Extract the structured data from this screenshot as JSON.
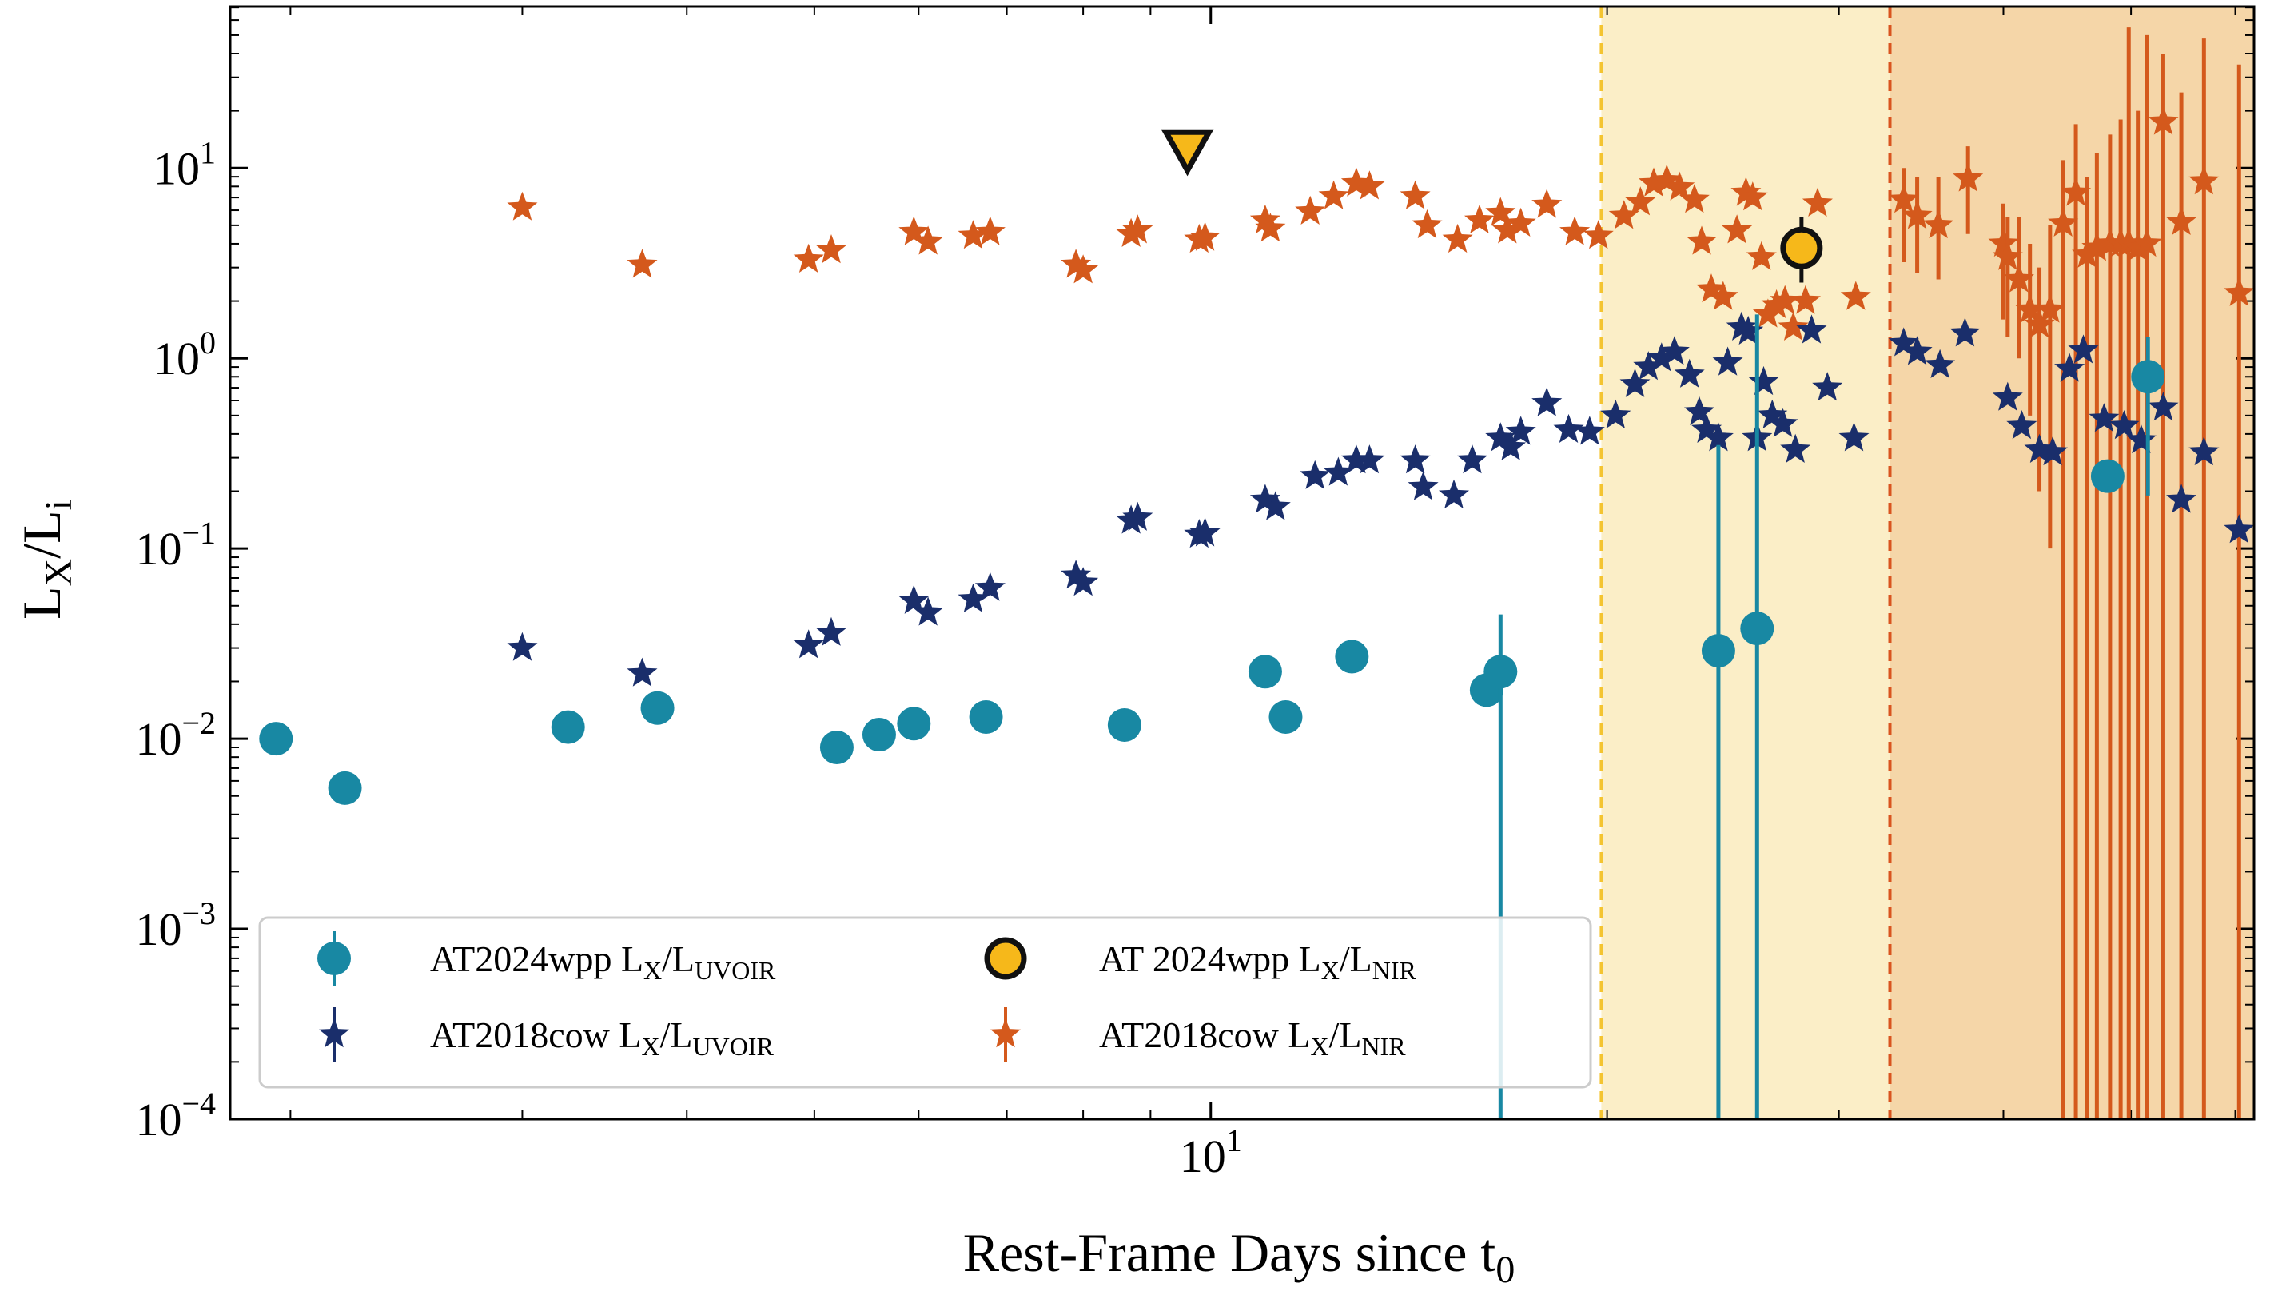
{
  "chart_data": {
    "type": "scatter",
    "title": "",
    "xlabel": "Rest-Frame Days since t",
    "xlabel_sub": "0",
    "ylabel_main": "L",
    "ylabel_sub1": "X",
    "ylabel_sep": "/L",
    "ylabel_sub2": "i",
    "xscale": "log",
    "yscale": "log",
    "xlim": [
      1.8,
      62
    ],
    "ylim_exp": [
      -4,
      1.85
    ],
    "x_ticks": [
      {
        "value": 10,
        "label": "10",
        "sup": "1"
      }
    ],
    "y_ticks": [
      {
        "exp": 1,
        "label": "10",
        "sup": "1"
      },
      {
        "exp": 0,
        "label": "10",
        "sup": "0"
      },
      {
        "exp": -1,
        "label": "10",
        "sup": "−1"
      },
      {
        "exp": -2,
        "label": "10",
        "sup": "−2"
      },
      {
        "exp": -3,
        "label": "10",
        "sup": "−3"
      },
      {
        "exp": -4,
        "label": "10",
        "sup": "−4"
      }
    ],
    "phases": [
      {
        "x0": 19.8,
        "x1": 32.8,
        "color": "#fbeec7",
        "line_color": "#f4c430"
      },
      {
        "x0": 32.8,
        "x1": 62,
        "color": "#f5d6a8",
        "line_color": "#d9541e"
      }
    ],
    "colors": {
      "wpp_uvoir": "#1888a3",
      "cow_uvoir": "#1a2e6b",
      "wpp_nir": "#f6b81a",
      "cow_nir": "#d4591c",
      "upper_limit": "#f6b81a"
    },
    "series": [
      {
        "name": "AT2024wpp L_X/L_UVOIR",
        "marker": "circle",
        "points": [
          {
            "x": 1.95,
            "y": 0.01
          },
          {
            "x": 2.2,
            "y": 0.0055
          },
          {
            "x": 3.25,
            "y": 0.0115
          },
          {
            "x": 3.8,
            "y": 0.0145
          },
          {
            "x": 5.2,
            "y": 0.009
          },
          {
            "x": 5.6,
            "y": 0.0105
          },
          {
            "x": 5.95,
            "y": 0.012
          },
          {
            "x": 6.75,
            "y": 0.013
          },
          {
            "x": 8.6,
            "y": 0.0118
          },
          {
            "x": 11.0,
            "y": 0.0225
          },
          {
            "x": 11.4,
            "y": 0.013
          },
          {
            "x": 12.8,
            "y": 0.027
          },
          {
            "x": 16.2,
            "y": 0.018
          },
          {
            "x": 16.6,
            "y": 0.0225,
            "ylo": 0.0001,
            "yhi": 0.045
          },
          {
            "x": 24.3,
            "y": 0.029,
            "ylo": 0.0001,
            "yhi": 0.35
          },
          {
            "x": 26.0,
            "y": 0.038,
            "ylo": 0.0001,
            "yhi": 1.7
          },
          {
            "x": 48.0,
            "y": 0.24
          },
          {
            "x": 51.5,
            "y": 0.8,
            "ylo": 0.19,
            "yhi": 1.3
          }
        ]
      },
      {
        "name": "AT2018cow L_X/L_UVOIR",
        "marker": "star",
        "points": [
          {
            "x": 3.0,
            "y": 0.03
          },
          {
            "x": 3.7,
            "y": 0.022
          },
          {
            "x": 4.95,
            "y": 0.031
          },
          {
            "x": 5.15,
            "y": 0.036
          },
          {
            "x": 5.95,
            "y": 0.053
          },
          {
            "x": 6.1,
            "y": 0.046
          },
          {
            "x": 6.6,
            "y": 0.054
          },
          {
            "x": 6.8,
            "y": 0.062
          },
          {
            "x": 7.9,
            "y": 0.072
          },
          {
            "x": 8.0,
            "y": 0.066
          },
          {
            "x": 8.7,
            "y": 0.14
          },
          {
            "x": 8.8,
            "y": 0.145
          },
          {
            "x": 9.8,
            "y": 0.118
          },
          {
            "x": 9.9,
            "y": 0.12
          },
          {
            "x": 11.0,
            "y": 0.18
          },
          {
            "x": 11.2,
            "y": 0.165
          },
          {
            "x": 12.0,
            "y": 0.24
          },
          {
            "x": 12.5,
            "y": 0.25
          },
          {
            "x": 12.9,
            "y": 0.29
          },
          {
            "x": 13.2,
            "y": 0.29
          },
          {
            "x": 14.3,
            "y": 0.29
          },
          {
            "x": 14.5,
            "y": 0.21
          },
          {
            "x": 15.3,
            "y": 0.19
          },
          {
            "x": 15.8,
            "y": 0.29
          },
          {
            "x": 16.6,
            "y": 0.38
          },
          {
            "x": 16.9,
            "y": 0.34
          },
          {
            "x": 17.2,
            "y": 0.41
          },
          {
            "x": 18.0,
            "y": 0.58
          },
          {
            "x": 18.7,
            "y": 0.42
          },
          {
            "x": 19.4,
            "y": 0.41
          },
          {
            "x": 20.3,
            "y": 0.5
          },
          {
            "x": 21.0,
            "y": 0.73
          },
          {
            "x": 21.5,
            "y": 0.9
          },
          {
            "x": 22.0,
            "y": 1.0
          },
          {
            "x": 22.5,
            "y": 1.08
          },
          {
            "x": 23.1,
            "y": 0.82
          },
          {
            "x": 23.5,
            "y": 0.52
          },
          {
            "x": 23.8,
            "y": 0.42
          },
          {
            "x": 24.3,
            "y": 0.38
          },
          {
            "x": 24.7,
            "y": 0.95
          },
          {
            "x": 25.3,
            "y": 1.45
          },
          {
            "x": 25.6,
            "y": 1.38
          },
          {
            "x": 26.0,
            "y": 0.38
          },
          {
            "x": 26.3,
            "y": 0.75
          },
          {
            "x": 26.7,
            "y": 0.5
          },
          {
            "x": 27.2,
            "y": 0.45
          },
          {
            "x": 27.8,
            "y": 0.33
          },
          {
            "x": 28.6,
            "y": 1.4
          },
          {
            "x": 29.4,
            "y": 0.7
          },
          {
            "x": 30.8,
            "y": 0.38
          },
          {
            "x": 33.6,
            "y": 1.2
          },
          {
            "x": 34.4,
            "y": 1.08
          },
          {
            "x": 35.8,
            "y": 0.92
          },
          {
            "x": 37.4,
            "y": 1.35
          },
          {
            "x": 40.3,
            "y": 0.62
          },
          {
            "x": 41.3,
            "y": 0.44
          },
          {
            "x": 42.6,
            "y": 0.33
          },
          {
            "x": 43.6,
            "y": 0.32
          },
          {
            "x": 44.9,
            "y": 0.88
          },
          {
            "x": 46.0,
            "y": 1.1
          },
          {
            "x": 47.7,
            "y": 0.48
          },
          {
            "x": 49.4,
            "y": 0.44
          },
          {
            "x": 50.9,
            "y": 0.37
          },
          {
            "x": 52.9,
            "y": 0.55
          },
          {
            "x": 54.6,
            "y": 0.18
          },
          {
            "x": 56.8,
            "y": 0.32
          },
          {
            "x": 60.4,
            "y": 0.125
          }
        ]
      },
      {
        "name": "AT 2024wpp L_X/L_NIR",
        "marker": "circle-outlined",
        "points": [
          {
            "x": 28.1,
            "y": 3.8,
            "ylo": 2.5,
            "yhi": 5.5
          }
        ]
      },
      {
        "name": "AT2018cow L_X/L_NIR",
        "marker": "star",
        "points": [
          {
            "x": 3.0,
            "y": 6.2
          },
          {
            "x": 3.7,
            "y": 3.1
          },
          {
            "x": 4.95,
            "y": 3.3
          },
          {
            "x": 5.15,
            "y": 3.7
          },
          {
            "x": 5.95,
            "y": 4.6
          },
          {
            "x": 6.1,
            "y": 4.1
          },
          {
            "x": 6.6,
            "y": 4.4
          },
          {
            "x": 6.8,
            "y": 4.6
          },
          {
            "x": 7.9,
            "y": 3.1
          },
          {
            "x": 8.0,
            "y": 2.9
          },
          {
            "x": 8.7,
            "y": 4.5
          },
          {
            "x": 8.8,
            "y": 4.7
          },
          {
            "x": 9.8,
            "y": 4.2
          },
          {
            "x": 9.9,
            "y": 4.3
          },
          {
            "x": 11.0,
            "y": 5.3
          },
          {
            "x": 11.1,
            "y": 4.8
          },
          {
            "x": 11.9,
            "y": 5.9
          },
          {
            "x": 12.4,
            "y": 7.1
          },
          {
            "x": 12.9,
            "y": 8.3
          },
          {
            "x": 13.2,
            "y": 8.0
          },
          {
            "x": 14.3,
            "y": 7.1
          },
          {
            "x": 14.6,
            "y": 5.0
          },
          {
            "x": 15.4,
            "y": 4.2
          },
          {
            "x": 16.0,
            "y": 5.3
          },
          {
            "x": 16.6,
            "y": 5.8
          },
          {
            "x": 16.8,
            "y": 4.7
          },
          {
            "x": 17.2,
            "y": 5.1
          },
          {
            "x": 18.0,
            "y": 6.4
          },
          {
            "x": 18.9,
            "y": 4.6
          },
          {
            "x": 19.7,
            "y": 4.4
          },
          {
            "x": 20.6,
            "y": 5.6
          },
          {
            "x": 21.2,
            "y": 6.6
          },
          {
            "x": 21.7,
            "y": 8.3
          },
          {
            "x": 22.2,
            "y": 8.6
          },
          {
            "x": 22.7,
            "y": 7.9
          },
          {
            "x": 23.3,
            "y": 6.8
          },
          {
            "x": 23.6,
            "y": 4.1
          },
          {
            "x": 24.0,
            "y": 2.3
          },
          {
            "x": 24.5,
            "y": 2.1
          },
          {
            "x": 25.1,
            "y": 4.7
          },
          {
            "x": 25.5,
            "y": 7.4
          },
          {
            "x": 25.8,
            "y": 7.0
          },
          {
            "x": 26.2,
            "y": 3.4
          },
          {
            "x": 26.5,
            "y": 1.7
          },
          {
            "x": 26.9,
            "y": 1.9
          },
          {
            "x": 27.3,
            "y": 2.0
          },
          {
            "x": 27.7,
            "y": 1.45
          },
          {
            "x": 28.3,
            "y": 2.0
          },
          {
            "x": 28.9,
            "y": 6.5
          },
          {
            "x": 30.9,
            "y": 2.1
          },
          {
            "x": 33.6,
            "y": 6.8,
            "ylo": 3.2,
            "yhi": 10
          },
          {
            "x": 34.4,
            "y": 5.6,
            "ylo": 2.8,
            "yhi": 9
          },
          {
            "x": 35.7,
            "y": 5.0,
            "ylo": 2.6,
            "yhi": 9
          },
          {
            "x": 37.6,
            "y": 8.8,
            "ylo": 4.5,
            "yhi": 13
          },
          {
            "x": 40.0,
            "y": 4.0,
            "ylo": 1.6,
            "yhi": 6.5
          },
          {
            "x": 40.3,
            "y": 3.4,
            "ylo": 1.3,
            "yhi": 5.5
          },
          {
            "x": 41.1,
            "y": 2.6,
            "ylo": 1.0,
            "yhi": 5.5
          },
          {
            "x": 41.9,
            "y": 1.8,
            "ylo": 0.5,
            "yhi": 4.0
          },
          {
            "x": 42.6,
            "y": 1.5,
            "ylo": 0.2,
            "yhi": 3.0
          },
          {
            "x": 43.4,
            "y": 1.8,
            "ylo": 0.1,
            "yhi": 5.0
          },
          {
            "x": 44.4,
            "y": 5.1,
            "ylo": 0.0001,
            "yhi": 11
          },
          {
            "x": 45.4,
            "y": 7.4,
            "ylo": 0.0001,
            "yhi": 17
          },
          {
            "x": 46.3,
            "y": 3.5,
            "ylo": 0.0001,
            "yhi": 9
          },
          {
            "x": 47.1,
            "y": 3.8,
            "ylo": 0.0001,
            "yhi": 12
          },
          {
            "x": 48.2,
            "y": 4.0,
            "ylo": 0.0001,
            "yhi": 15
          },
          {
            "x": 49.1,
            "y": 4.0,
            "ylo": 0.0001,
            "yhi": 18
          },
          {
            "x": 49.8,
            "y": 4.0,
            "ylo": 0.0001,
            "yhi": 55
          },
          {
            "x": 50.6,
            "y": 3.8,
            "ylo": 0.0001,
            "yhi": 20
          },
          {
            "x": 51.4,
            "y": 4.0,
            "ylo": 0.0001,
            "yhi": 50
          },
          {
            "x": 52.9,
            "y": 17.5,
            "ylo": 0.0001,
            "yhi": 40
          },
          {
            "x": 54.6,
            "y": 5.2,
            "ylo": 0.0001,
            "yhi": 25
          },
          {
            "x": 56.8,
            "y": 8.5,
            "ylo": 0.0001,
            "yhi": 48
          },
          {
            "x": 60.4,
            "y": 2.2,
            "ylo": 0.0001,
            "yhi": 35
          }
        ]
      },
      {
        "name": "AT2024wpp upper limit",
        "marker": "triangle-down",
        "points": [
          {
            "x": 9.6,
            "y": 12.5
          }
        ]
      }
    ],
    "legend": {
      "position": "lower-left",
      "entries": [
        {
          "label": "AT2024wpp L",
          "sub1": "X",
          "sep": "/L",
          "sub2": "UVOIR",
          "marker": "circle",
          "color": "#1888a3"
        },
        {
          "label": "AT 2024wpp L",
          "sub1": "X",
          "sep": "/L",
          "sub2": "NIR",
          "marker": "circle-outlined",
          "color": "#f6b81a"
        },
        {
          "label": "AT2018cow L",
          "sub1": "X",
          "sep": "/L",
          "sub2": "UVOIR",
          "marker": "star",
          "color": "#1a2e6b"
        },
        {
          "label": "AT2018cow L",
          "sub1": "X",
          "sep": "/L",
          "sub2": "NIR",
          "marker": "star",
          "color": "#d4591c"
        }
      ]
    }
  }
}
